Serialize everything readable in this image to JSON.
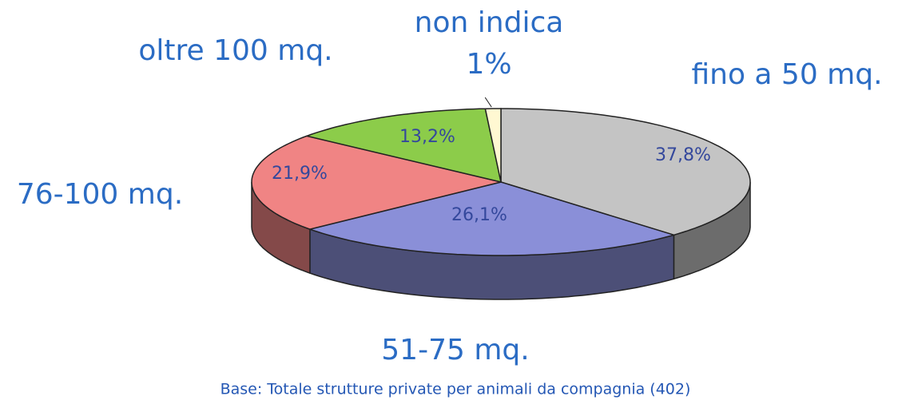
{
  "chart_data": {
    "type": "pie",
    "categories": [
      "fino a 50 mq.",
      "51-75 mq.",
      "76-100 mq.",
      "oltre 100 mq.",
      "non indica"
    ],
    "values": [
      37.8,
      26.1,
      21.9,
      13.2,
      1
    ],
    "value_labels": [
      "37,8%",
      "26,1%",
      "21,9%",
      "13,2%",
      "1%"
    ],
    "colors": [
      "#c4c4c4",
      "#8a8fd8",
      "#f08484",
      "#8ccc4a",
      "#fff8d2"
    ],
    "caption": "Base: Totale strutture private per animali da compagnia  (402)"
  }
}
